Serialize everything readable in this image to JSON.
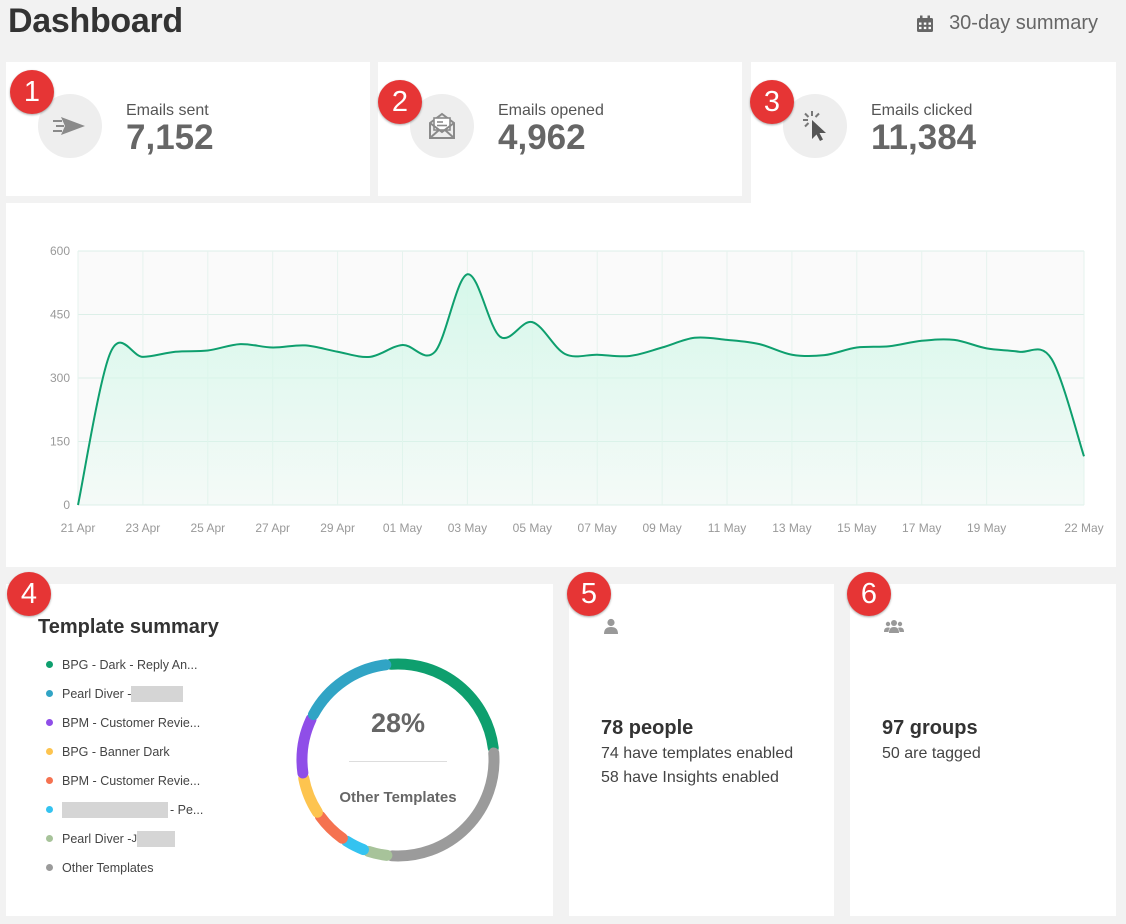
{
  "header": {
    "title": "Dashboard",
    "range_label": "30-day summary",
    "range_icon": "calendar-icon"
  },
  "badges": [
    "1",
    "2",
    "3",
    "4",
    "5",
    "6"
  ],
  "stats": [
    {
      "label": "Emails sent",
      "value": "7,152",
      "icon": "paper-plane-icon"
    },
    {
      "label": "Emails opened",
      "value": "4,962",
      "icon": "open-envelope-icon"
    },
    {
      "label": "Emails clicked",
      "value": "11,384",
      "icon": "cursor-click-icon"
    }
  ],
  "chart_data": {
    "type": "area",
    "title": "",
    "xlabel": "",
    "ylabel": "",
    "ylim": [
      0,
      600
    ],
    "yticks": [
      "0",
      "150",
      "300",
      "450",
      "600"
    ],
    "xticks": [
      "21 Apr",
      "23 Apr",
      "25 Apr",
      "27 Apr",
      "29 Apr",
      "01 May",
      "03 May",
      "05 May",
      "07 May",
      "09 May",
      "11 May",
      "13 May",
      "15 May",
      "17 May",
      "19 May",
      "22 May"
    ],
    "grid": true,
    "x": [
      "21 Apr",
      "22 Apr",
      "23 Apr",
      "24 Apr",
      "25 Apr",
      "26 Apr",
      "27 Apr",
      "28 Apr",
      "29 Apr",
      "30 Apr",
      "01 May",
      "02 May",
      "03 May",
      "04 May",
      "05 May",
      "06 May",
      "07 May",
      "08 May",
      "09 May",
      "10 May",
      "11 May",
      "12 May",
      "13 May",
      "14 May",
      "15 May",
      "16 May",
      "17 May",
      "18 May",
      "19 May",
      "20 May",
      "21 May",
      "22 May"
    ],
    "series": [
      {
        "values": [
          0,
          360,
          350,
          362,
          365,
          380,
          372,
          377,
          362,
          350,
          378,
          362,
          545,
          398,
          432,
          357,
          355,
          352,
          372,
          395,
          390,
          380,
          355,
          354,
          372,
          375,
          388,
          390,
          370,
          362,
          345,
          115
        ]
      }
    ],
    "line_color": "#0e9f6e",
    "fill_color": "#d6f8ea"
  },
  "template_summary": {
    "title": "Template summary",
    "legend": [
      {
        "label": "BPG - Dark - Reply An...",
        "color": "#0e9f6e"
      },
      {
        "label": "Pearl Diver - ",
        "color": "#31a4c5",
        "redacted_after": true
      },
      {
        "label": "BPM - Customer Revie...",
        "color": "#8f4ee8"
      },
      {
        "label": "BPG - Banner Dark",
        "color": "#fdc44f"
      },
      {
        "label": "BPM - Customer Revie...",
        "color": "#f57250"
      },
      {
        "label": "- Pe...",
        "color": "#34c3f0",
        "redacted_before": true
      },
      {
        "label": "Pearl Diver - ",
        "color": "#a7c39a",
        "redacted_after": true,
        "prefix_char": "J"
      },
      {
        "label": "Other Templates",
        "color": "#9b9b9b"
      }
    ],
    "donut": {
      "percent_label": "28%",
      "center_label": "Other Templates",
      "segments": [
        {
          "name": "BPG - Dark - Reply An...",
          "color": "#0e9f6e",
          "fraction": 0.25
        },
        {
          "name": "Other Templates",
          "color": "#9b9b9b",
          "fraction": 0.28
        },
        {
          "name": "Pearl Diver",
          "color": "#a7c39a",
          "fraction": 0.04
        },
        {
          "name": "redacted - Pe...",
          "color": "#34c3f0",
          "fraction": 0.04
        },
        {
          "name": "BPM - Customer Revie...",
          "color": "#f57250",
          "fraction": 0.06
        },
        {
          "name": "BPG - Banner Dark",
          "color": "#fdc44f",
          "fraction": 0.07
        },
        {
          "name": "BPM - Customer Revie...",
          "color": "#8f4ee8",
          "fraction": 0.1
        },
        {
          "name": "Pearl Diver",
          "color": "#31a4c5",
          "fraction": 0.16
        }
      ]
    }
  },
  "people": {
    "icon": "person-icon",
    "main": "78 people",
    "lines": [
      "74 have templates enabled",
      "58 have Insights enabled"
    ]
  },
  "groups": {
    "icon": "group-icon",
    "main": "97 groups",
    "lines": [
      "50 are tagged"
    ]
  }
}
